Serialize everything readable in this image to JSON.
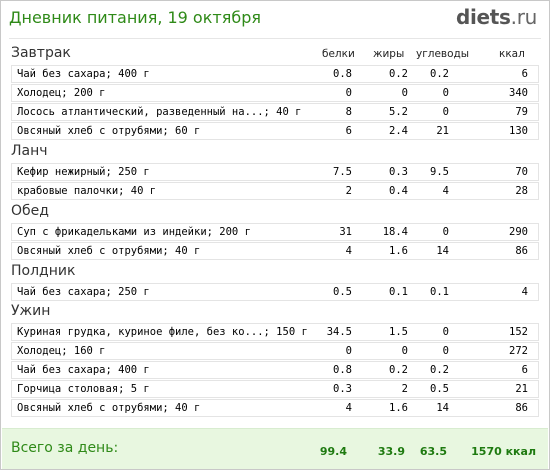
{
  "header": {
    "title": "Дневник питания, 19 октября",
    "logo_name": "diets",
    "logo_tld": ".ru"
  },
  "columns": [
    "белки",
    "жиры",
    "углеводы",
    "ккал"
  ],
  "sections": [
    {
      "title": "Завтрак",
      "rows": [
        {
          "name": "Чай без сахара; 400 г",
          "v": [
            "0.8",
            "0.2",
            "0.2",
            "6"
          ]
        },
        {
          "name": "Холодец; 200 г",
          "v": [
            "0",
            "0",
            "0",
            "340"
          ]
        },
        {
          "name": "Лосось атлантический, разведенный на...; 40 г",
          "v": [
            "8",
            "5.2",
            "0",
            "79"
          ]
        },
        {
          "name": "Овсяный хлеб с отрубями; 60 г",
          "v": [
            "6",
            "2.4",
            "21",
            "130"
          ]
        }
      ]
    },
    {
      "title": "Ланч",
      "rows": [
        {
          "name": "Кефир нежирный; 250 г",
          "v": [
            "7.5",
            "0.3",
            "9.5",
            "70"
          ]
        },
        {
          "name": "крабовые палочки; 40 г",
          "v": [
            "2",
            "0.4",
            "4",
            "28"
          ]
        }
      ]
    },
    {
      "title": "Обед",
      "rows": [
        {
          "name": "Суп с фрикадельками из индейки; 200 г",
          "v": [
            "31",
            "18.4",
            "0",
            "290"
          ]
        },
        {
          "name": "Овсяный хлеб с отрубями; 40 г",
          "v": [
            "4",
            "1.6",
            "14",
            "86"
          ]
        }
      ]
    },
    {
      "title": "Полдник",
      "rows": [
        {
          "name": "Чай без сахара; 250 г",
          "v": [
            "0.5",
            "0.1",
            "0.1",
            "4"
          ]
        }
      ]
    },
    {
      "title": "Ужин",
      "rows": [
        {
          "name": "Куриная грудка, куриное филе, без ко...; 150 г",
          "v": [
            "34.5",
            "1.5",
            "0",
            "152"
          ]
        },
        {
          "name": "Холодец; 160 г",
          "v": [
            "0",
            "0",
            "0",
            "272"
          ]
        },
        {
          "name": "Чай без сахара; 400 г",
          "v": [
            "0.8",
            "0.2",
            "0.2",
            "6"
          ]
        },
        {
          "name": "Горчица столовая; 5 г",
          "v": [
            "0.3",
            "2",
            "0.5",
            "21"
          ]
        },
        {
          "name": "Овсяный хлеб с отрубями; 40 г",
          "v": [
            "4",
            "1.6",
            "14",
            "86"
          ]
        }
      ]
    }
  ],
  "footer": {
    "label": "Всего за день:",
    "totals": [
      "99.4",
      "33.9",
      "63.5",
      "1570 ккал"
    ]
  }
}
